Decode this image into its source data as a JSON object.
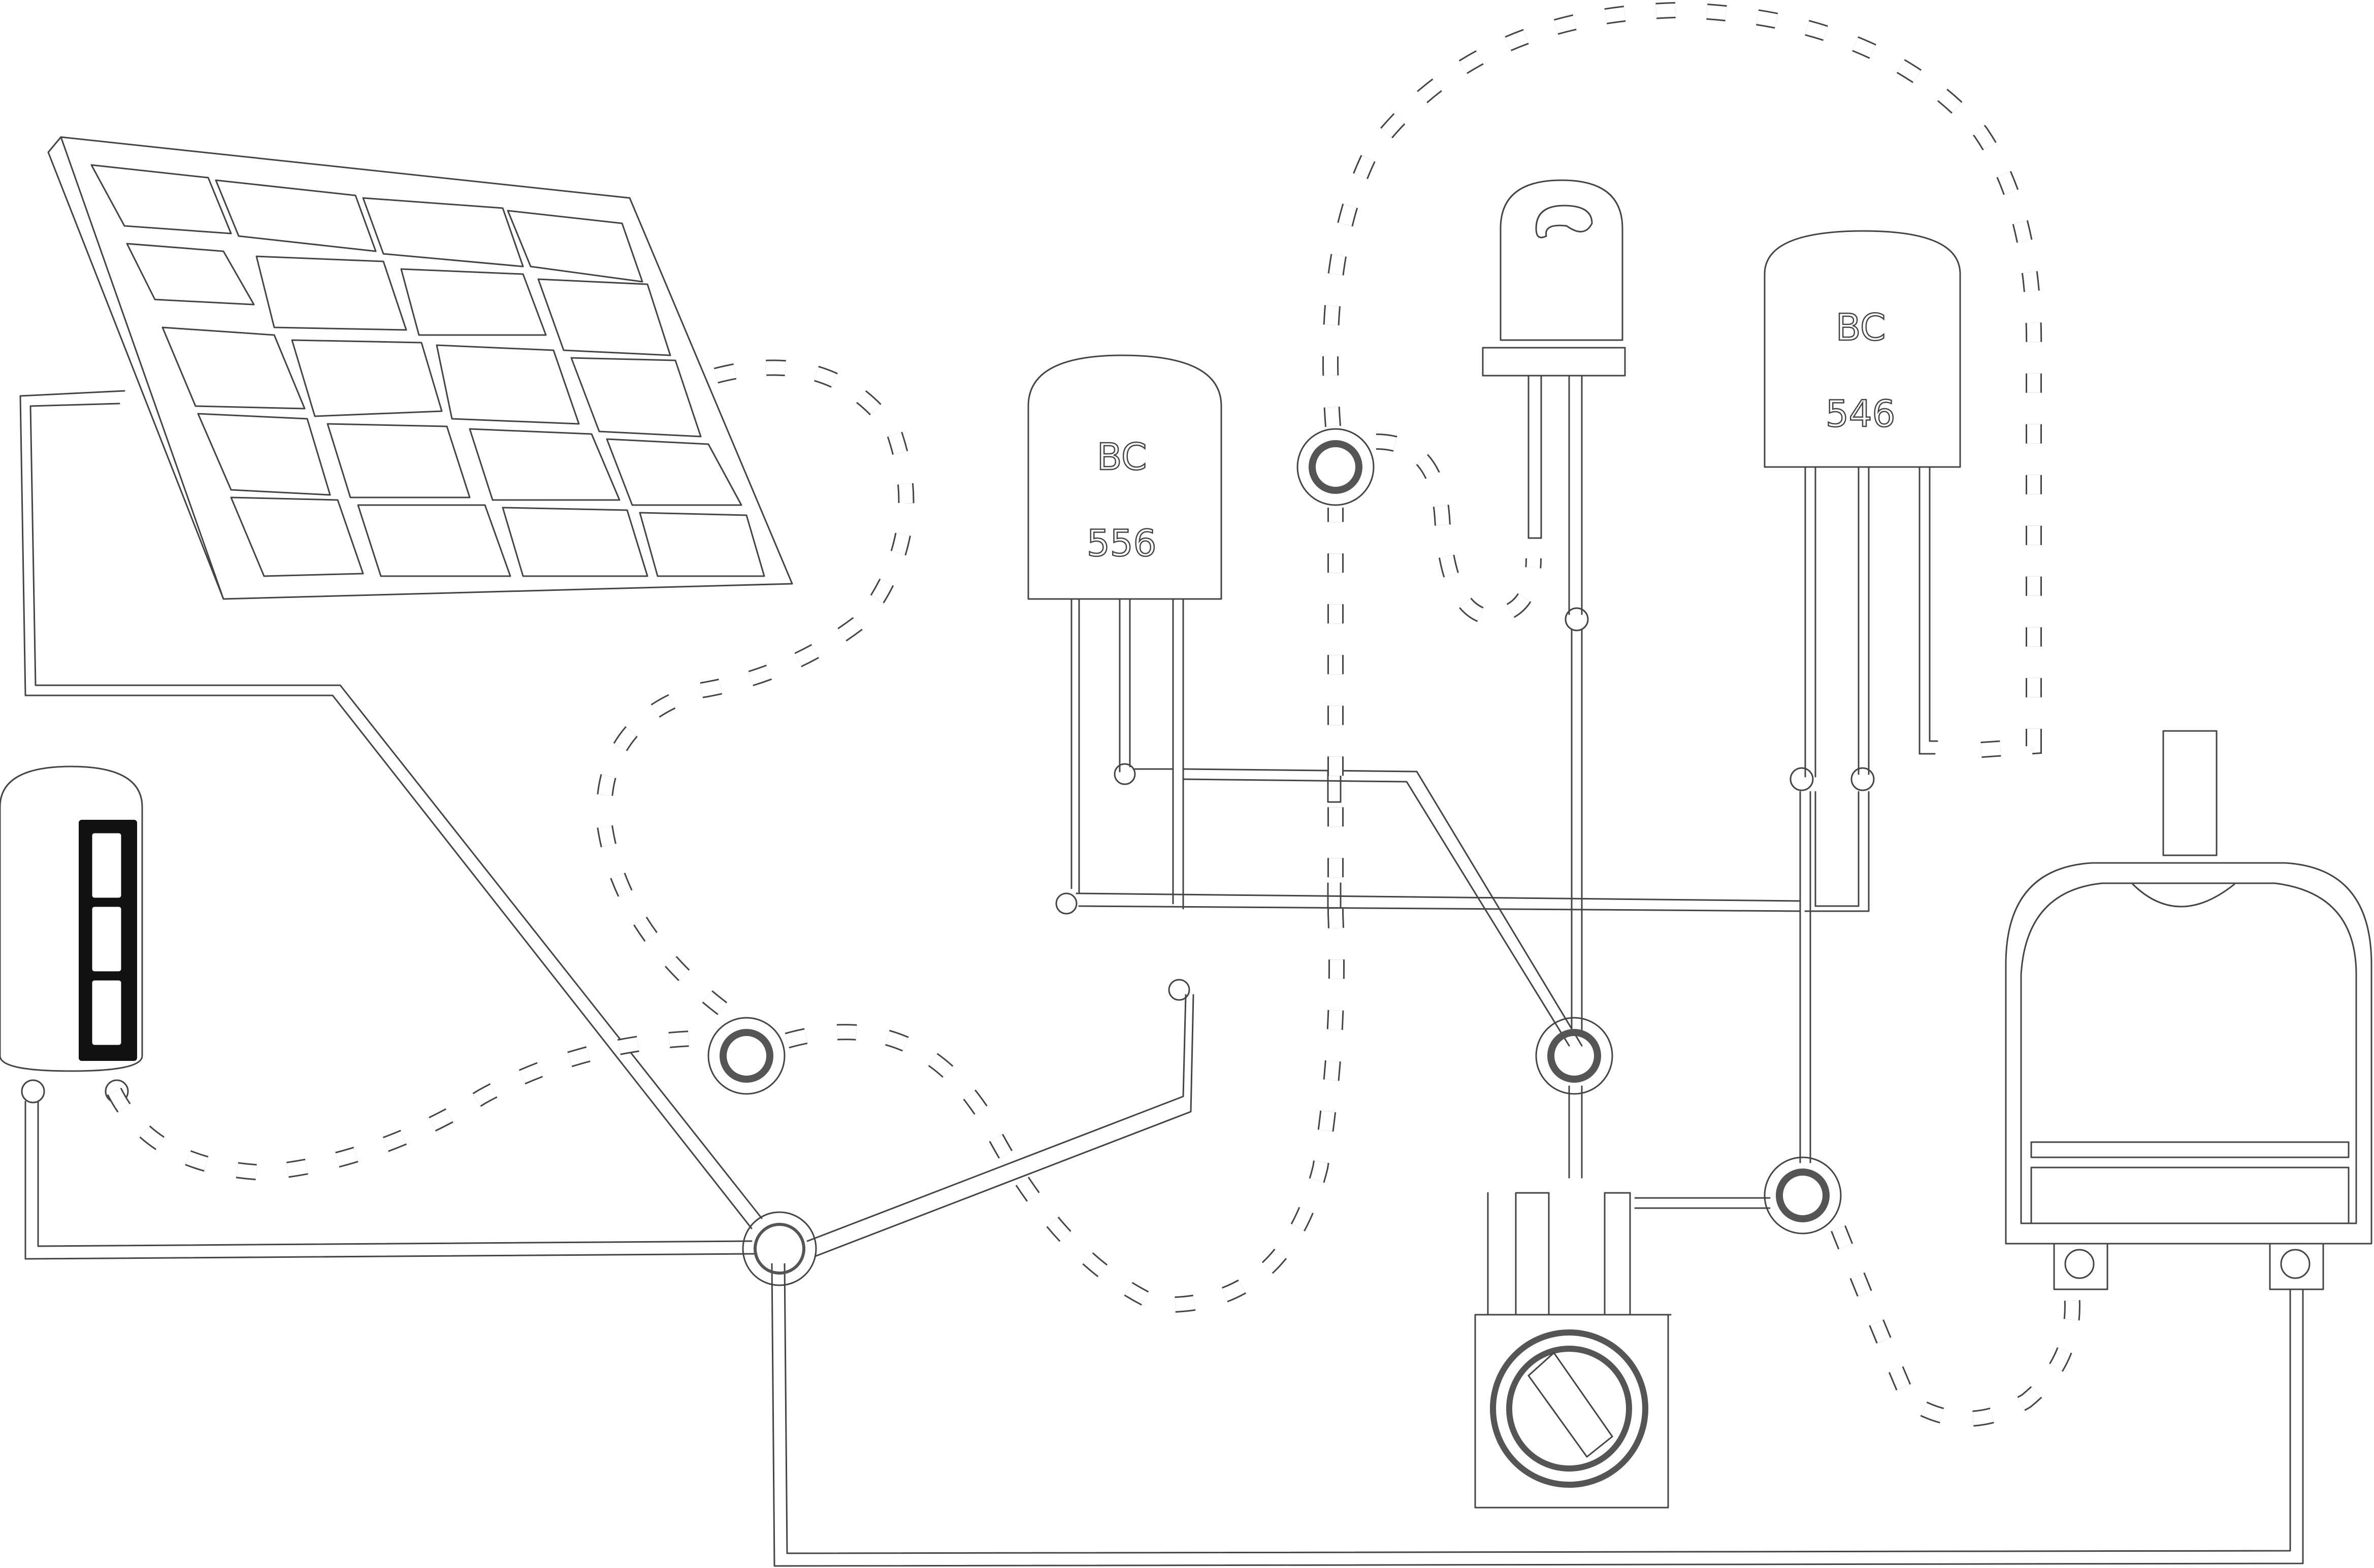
{
  "components": {
    "transistor_left": {
      "label_line1": "BC",
      "label_line2": "556"
    },
    "transistor_right": {
      "label_line1": "BC",
      "label_line2": "546"
    },
    "solar_panel": {
      "name": "solar-panel"
    },
    "battery": {
      "name": "battery"
    },
    "led": {
      "name": "led"
    },
    "potentiometer": {
      "name": "potentiometer"
    },
    "motor": {
      "name": "motor"
    }
  },
  "colors": {
    "background": "#ffffff",
    "outline": "#444444",
    "battery_body": "#111111"
  }
}
